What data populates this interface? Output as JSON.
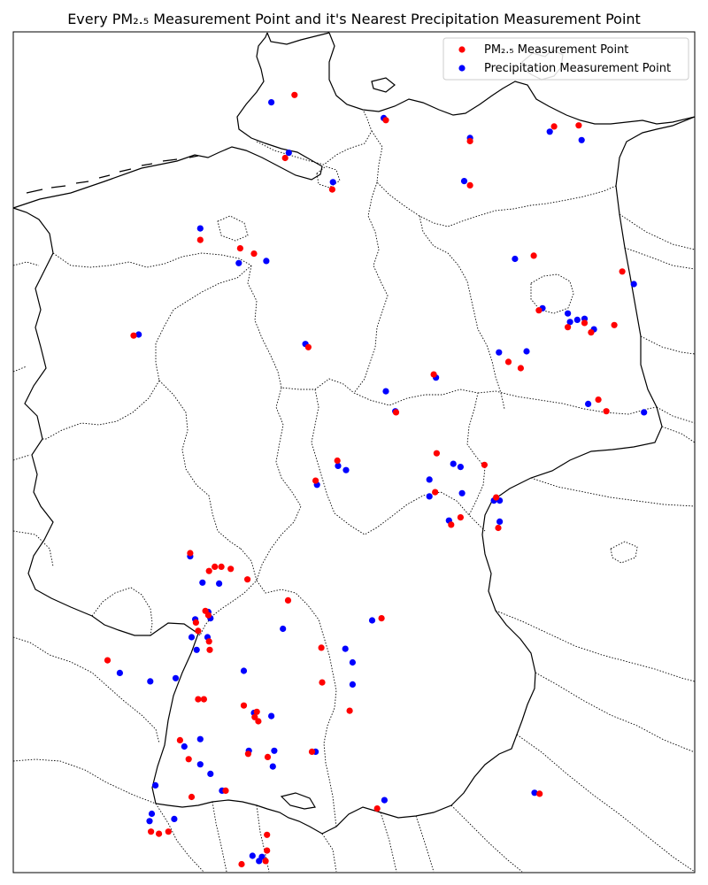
{
  "title": "Every PM₂.₅ Measurement Point and it's Nearest Precipitation Measurement Point",
  "legend": {
    "location": "upper right",
    "items": [
      {
        "label": "PM₂.₅ Measurement Point",
        "color": "#ff0000"
      },
      {
        "label": "Precipitation Measurement Point",
        "color": "#0000ff"
      }
    ]
  },
  "map": {
    "region": "Germany",
    "extent": {
      "lon": [
        5.8,
        15.2
      ],
      "lat": [
        47.2,
        55.2
      ]
    },
    "projection": "plate carree"
  },
  "chart_data": {
    "type": "scatter",
    "xlabel": "",
    "ylabel": "",
    "grid": false,
    "legend_placement": "upper-right",
    "series": [
      {
        "name": "PM₂.₅ Measurement Point",
        "color": "#ff0000",
        "points": [
          [
            9.68,
            54.6
          ],
          [
            10.94,
            54.36
          ],
          [
            9.55,
            54.0
          ],
          [
            10.2,
            53.7
          ],
          [
            12.1,
            54.16
          ],
          [
            12.1,
            53.74
          ],
          [
            13.26,
            54.3
          ],
          [
            13.6,
            54.31
          ],
          [
            12.98,
            53.07
          ],
          [
            14.2,
            52.92
          ],
          [
            8.38,
            53.22
          ],
          [
            8.93,
            53.14
          ],
          [
            9.12,
            53.09
          ],
          [
            13.05,
            52.55
          ],
          [
            13.77,
            52.34
          ],
          [
            14.09,
            52.41
          ],
          [
            13.68,
            52.43
          ],
          [
            13.45,
            52.39
          ],
          [
            7.46,
            52.31
          ],
          [
            9.87,
            52.2
          ],
          [
            11.6,
            51.94
          ],
          [
            11.08,
            51.58
          ],
          [
            12.63,
            52.06
          ],
          [
            12.8,
            52.0
          ],
          [
            13.87,
            51.7
          ],
          [
            13.98,
            51.59
          ],
          [
            10.27,
            51.12
          ],
          [
            11.64,
            51.19
          ],
          [
            12.3,
            51.08
          ],
          [
            9.97,
            50.93
          ],
          [
            11.62,
            50.82
          ],
          [
            12.46,
            50.77
          ],
          [
            11.97,
            50.58
          ],
          [
            12.49,
            50.48
          ],
          [
            11.84,
            50.51
          ],
          [
            8.24,
            50.24
          ],
          [
            8.5,
            50.07
          ],
          [
            8.58,
            50.11
          ],
          [
            8.67,
            50.11
          ],
          [
            8.8,
            50.09
          ],
          [
            9.03,
            49.99
          ],
          [
            9.59,
            49.79
          ],
          [
            8.45,
            49.69
          ],
          [
            8.49,
            49.65
          ],
          [
            8.32,
            49.58
          ],
          [
            8.35,
            49.5
          ],
          [
            8.5,
            49.4
          ],
          [
            8.51,
            49.32
          ],
          [
            7.1,
            49.22
          ],
          [
            10.88,
            49.62
          ],
          [
            10.05,
            49.34
          ],
          [
            10.06,
            49.01
          ],
          [
            8.43,
            48.85
          ],
          [
            8.35,
            48.85
          ],
          [
            8.98,
            48.79
          ],
          [
            9.16,
            48.73
          ],
          [
            9.13,
            48.68
          ],
          [
            9.18,
            48.64
          ],
          [
            10.44,
            48.74
          ],
          [
            8.1,
            48.46
          ],
          [
            8.22,
            48.28
          ],
          [
            9.04,
            48.33
          ],
          [
            9.31,
            48.3
          ],
          [
            9.92,
            48.35
          ],
          [
            8.73,
            47.98
          ],
          [
            8.26,
            47.92
          ],
          [
            10.82,
            47.81
          ],
          [
            13.06,
            47.95
          ],
          [
            7.94,
            47.59
          ],
          [
            7.7,
            47.59
          ],
          [
            7.81,
            47.57
          ],
          [
            9.3,
            47.41
          ],
          [
            9.3,
            47.56
          ],
          [
            9.28,
            47.31
          ],
          [
            8.95,
            47.28
          ]
        ]
      },
      {
        "name": "Precipitation Measurement Point",
        "color": "#0000ff",
        "points": [
          [
            9.36,
            54.53
          ],
          [
            10.91,
            54.38
          ],
          [
            9.6,
            54.05
          ],
          [
            10.21,
            53.77
          ],
          [
            12.1,
            54.19
          ],
          [
            12.02,
            53.78
          ],
          [
            13.2,
            54.25
          ],
          [
            13.64,
            54.17
          ],
          [
            12.72,
            53.04
          ],
          [
            14.36,
            52.8
          ],
          [
            8.38,
            53.33
          ],
          [
            8.91,
            53.0
          ],
          [
            9.29,
            53.02
          ],
          [
            13.1,
            52.57
          ],
          [
            13.68,
            52.47
          ],
          [
            13.58,
            52.46
          ],
          [
            13.48,
            52.44
          ],
          [
            13.81,
            52.37
          ],
          [
            13.45,
            52.52
          ],
          [
            7.53,
            52.32
          ],
          [
            9.83,
            52.23
          ],
          [
            11.63,
            51.91
          ],
          [
            10.94,
            51.78
          ],
          [
            11.07,
            51.59
          ],
          [
            12.5,
            52.15
          ],
          [
            12.88,
            52.16
          ],
          [
            13.73,
            51.66
          ],
          [
            14.5,
            51.58
          ],
          [
            10.28,
            51.07
          ],
          [
            10.39,
            51.03
          ],
          [
            11.87,
            51.09
          ],
          [
            11.54,
            50.94
          ],
          [
            11.97,
            51.06
          ],
          [
            9.99,
            50.89
          ],
          [
            11.54,
            50.78
          ],
          [
            12.43,
            50.74
          ],
          [
            12.51,
            50.74
          ],
          [
            12.51,
            50.54
          ],
          [
            11.81,
            50.55
          ],
          [
            11.99,
            50.81
          ],
          [
            8.24,
            50.21
          ],
          [
            8.41,
            49.96
          ],
          [
            8.64,
            49.95
          ],
          [
            8.49,
            49.68
          ],
          [
            8.52,
            49.62
          ],
          [
            8.31,
            49.61
          ],
          [
            8.48,
            49.44
          ],
          [
            8.26,
            49.44
          ],
          [
            8.33,
            49.32
          ],
          [
            7.27,
            49.1
          ],
          [
            7.69,
            49.02
          ],
          [
            8.04,
            49.05
          ],
          [
            8.98,
            49.12
          ],
          [
            10.75,
            49.6
          ],
          [
            10.38,
            49.33
          ],
          [
            9.52,
            49.52
          ],
          [
            10.48,
            49.2
          ],
          [
            10.48,
            48.99
          ],
          [
            9.12,
            48.72
          ],
          [
            8.16,
            48.4
          ],
          [
            8.38,
            48.47
          ],
          [
            9.36,
            48.69
          ],
          [
            9.05,
            48.36
          ],
          [
            9.4,
            48.36
          ],
          [
            9.38,
            48.21
          ],
          [
            9.97,
            48.35
          ],
          [
            7.71,
            47.76
          ],
          [
            7.76,
            48.03
          ],
          [
            8.02,
            47.71
          ],
          [
            8.68,
            47.98
          ],
          [
            8.52,
            48.14
          ],
          [
            8.38,
            48.23
          ],
          [
            9.1,
            47.36
          ],
          [
            10.92,
            47.89
          ],
          [
            12.99,
            47.96
          ],
          [
            7.68,
            47.69
          ],
          [
            9.23,
            47.35
          ],
          [
            9.19,
            47.31
          ]
        ]
      }
    ]
  }
}
